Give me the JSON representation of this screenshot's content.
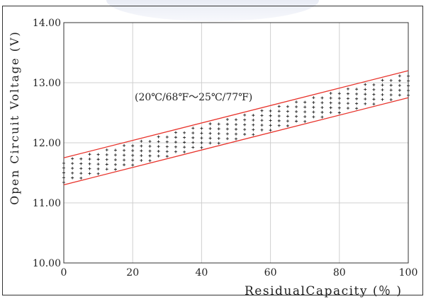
{
  "chart_data": {
    "type": "area",
    "title": "",
    "annotation": "(20℃/68℉～25℃/77℉)",
    "xlabel": "ResidualCapacity (％ )",
    "ylabel": "Open Circuit Voltage (V)",
    "xlim": [
      0,
      100
    ],
    "ylim": [
      10.0,
      14.0
    ],
    "x_ticks": [
      "0",
      "20",
      "40",
      "60",
      "80",
      "100"
    ],
    "y_ticks": [
      "10.00",
      "11.00",
      "12.00",
      "13.00",
      "14.00"
    ],
    "grid": true,
    "series": [
      {
        "x": [
          0,
          100
        ],
        "values": [
          11.75,
          13.2
        ]
      },
      {
        "x": [
          0,
          100
        ],
        "values": [
          11.3,
          12.75
        ]
      }
    ],
    "colors": {
      "band_edge": "#e8322a",
      "fill_mark": "#222222",
      "grid": "#cfcfcf"
    }
  }
}
